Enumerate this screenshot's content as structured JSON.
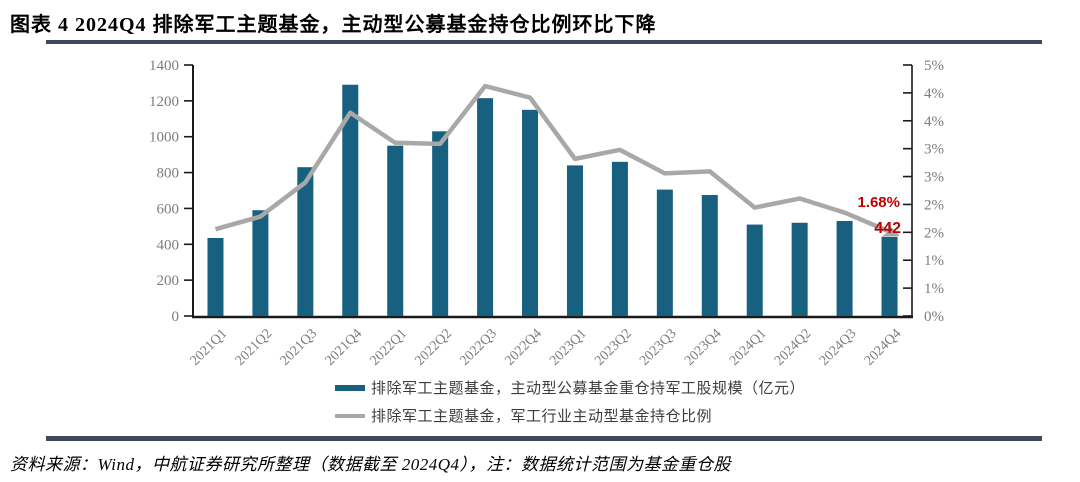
{
  "figure": {
    "title": "图表 4 2024Q4 排除军工主题基金，主动型公募基金持仓比例环比下降",
    "source_note": "资料来源：Wind，中航证券研究所整理（数据截至 2024Q4），注：数据统计范围为基金重仓股"
  },
  "colors": {
    "bar": "#17607F",
    "line": "#A8A8A8",
    "annotation": "#C00000",
    "separator": "#3D4A5C",
    "axis": "#1A1A1A",
    "tick_label": "#7D7D7D"
  },
  "chart_data": {
    "type": "bar+line",
    "title": "",
    "grid": false,
    "legend_position": "bottom",
    "categories": [
      "2021Q1",
      "2021Q2",
      "2021Q3",
      "2021Q4",
      "2022Q1",
      "2022Q2",
      "2022Q3",
      "2022Q4",
      "2023Q1",
      "2023Q2",
      "2023Q3",
      "2023Q4",
      "2024Q1",
      "2024Q2",
      "2024Q3",
      "2024Q4"
    ],
    "series": [
      {
        "name": "排除军工主题基金，主动型公募基金重仓持军工股规模（亿元）",
        "type": "bar",
        "axis": "left",
        "values": [
          435,
          590,
          830,
          1290,
          950,
          1030,
          1215,
          1150,
          840,
          860,
          705,
          675,
          510,
          520,
          530,
          442
        ]
      },
      {
        "name": "排除军工主题基金，军工行业主动型基金持仓比例",
        "type": "line",
        "axis": "right",
        "values": [
          1.73,
          1.98,
          2.66,
          4.05,
          3.45,
          3.43,
          4.58,
          4.35,
          3.13,
          3.31,
          2.84,
          2.88,
          2.16,
          2.34,
          2.06,
          1.68
        ]
      }
    ],
    "left_axis": {
      "min": 0,
      "max": 1400,
      "tick_step": 200,
      "tick_labels": [
        "0",
        "200",
        "400",
        "600",
        "800",
        "1000",
        "1200",
        "1400"
      ]
    },
    "right_axis": {
      "min": 0,
      "max": 5,
      "tick_labels": [
        "0%",
        "1%",
        "1%",
        "2%",
        "2%",
        "3%",
        "3%",
        "4%",
        "4%",
        "5%"
      ]
    },
    "annotations": [
      {
        "text": "1.68%",
        "target": "line-last-point"
      },
      {
        "text": "442",
        "target": "last-bar-value"
      }
    ]
  }
}
